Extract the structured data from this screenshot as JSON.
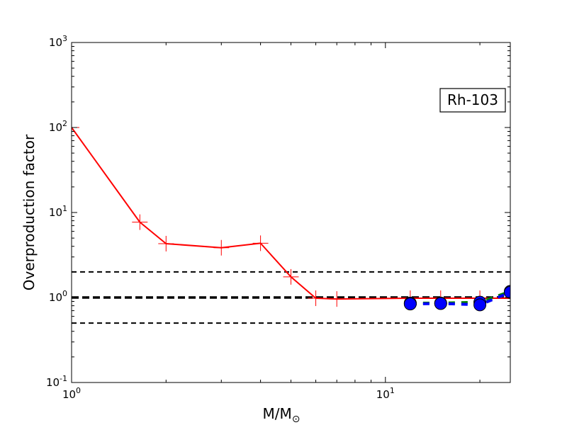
{
  "chart_data": {
    "type": "line",
    "xscale": "log",
    "yscale": "log",
    "xlim": [
      1,
      25
    ],
    "ylim": [
      0.1,
      1000
    ],
    "xlabel": "M/M",
    "xlabel_sub": "⊙",
    "ylabel": "Overproduction factor",
    "annotation": "Rh-103",
    "x_ticks": [
      {
        "value": 1,
        "base": "10",
        "exp": "0"
      },
      {
        "value": 10,
        "base": "10",
        "exp": "1"
      }
    ],
    "y_ticks": [
      {
        "value": 0.1,
        "base": "10",
        "exp": "-1"
      },
      {
        "value": 1,
        "base": "10",
        "exp": "0"
      },
      {
        "value": 10,
        "base": "10",
        "exp": "1"
      },
      {
        "value": 100,
        "base": "10",
        "exp": "2"
      },
      {
        "value": 1000,
        "base": "10",
        "exp": "3"
      }
    ],
    "reference_lines": [
      {
        "y": 2,
        "color": "#000000",
        "style": "dashed",
        "weight": "thin"
      },
      {
        "y": 1,
        "color": "#000000",
        "style": "dashed",
        "weight": "thick"
      },
      {
        "y": 0.5,
        "color": "#000000",
        "style": "dashed",
        "weight": "thin"
      }
    ],
    "series": [
      {
        "color": "#ff0000",
        "marker": "plus",
        "line_style": "solid",
        "x": [
          1,
          1.65,
          2,
          3,
          4,
          5,
          6,
          7,
          12,
          15,
          20,
          25
        ],
        "y": [
          100,
          7.7,
          4.3,
          3.85,
          4.35,
          1.75,
          0.98,
          0.96,
          0.98,
          0.98,
          0.98,
          0.98
        ]
      },
      {
        "color": "#008000",
        "marker": "circle",
        "line_style": "dashed",
        "x": [
          12,
          15,
          20,
          25
        ],
        "y": [
          0.86,
          0.86,
          0.88,
          1.18
        ]
      },
      {
        "color": "#0000ff",
        "marker": "circle",
        "line_style": "dashed",
        "x": [
          12,
          15,
          20,
          25
        ],
        "y": [
          0.84,
          0.85,
          0.82,
          1.15
        ]
      }
    ],
    "colors": {
      "frame": "#000000",
      "marker_fill": "#0000ff"
    }
  }
}
